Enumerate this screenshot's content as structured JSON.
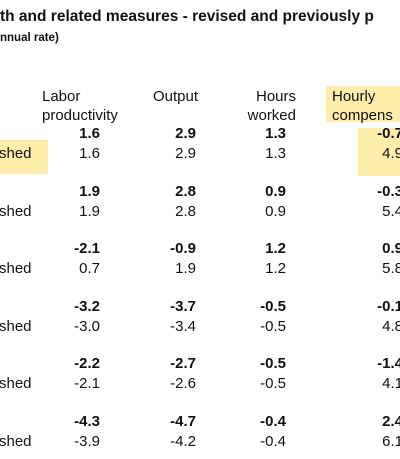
{
  "header": {
    "title": "th and related measures - revised and previously p",
    "subtitle": "nnual rate)"
  },
  "table": {
    "columns": [
      [
        "Labor",
        "productivity"
      ],
      [
        "Output"
      ],
      [
        "Hours",
        "worked"
      ],
      [
        "Hourly",
        "compens"
      ]
    ],
    "groups": [
      {
        "revised": [
          "1.6",
          "2.9",
          "1.3",
          "-0.7"
        ],
        "previous_label": "shed",
        "previous": [
          "1.6",
          "2.9",
          "1.3",
          "4.9"
        ]
      },
      {
        "revised": [
          "1.9",
          "2.8",
          "0.9",
          "-0.3"
        ],
        "previous_label": "shed",
        "previous": [
          "1.9",
          "2.8",
          "0.9",
          "5.4"
        ]
      },
      {
        "revised": [
          "-2.1",
          "-0.9",
          "1.2",
          "0.9"
        ],
        "previous_label": "shed",
        "previous": [
          "0.7",
          "1.9",
          "1.2",
          "5.8"
        ]
      },
      {
        "revised": [
          "-3.2",
          "-3.7",
          "-0.5",
          "-0.1"
        ],
        "previous_label": "shed",
        "previous": [
          "-3.0",
          "-3.4",
          "-0.5",
          "4.8"
        ]
      },
      {
        "revised": [
          "-2.2",
          "-2.7",
          "-0.5",
          "-1.4"
        ],
        "previous_label": "shed",
        "previous": [
          "-2.1",
          "-2.6",
          "-0.5",
          "4.1"
        ]
      },
      {
        "revised": [
          "-4.3",
          "-4.7",
          "-0.4",
          "2.4"
        ],
        "previous_label": "shed",
        "previous": [
          "-3.9",
          "-4.2",
          "-0.4",
          "6.1"
        ]
      }
    ]
  }
}
